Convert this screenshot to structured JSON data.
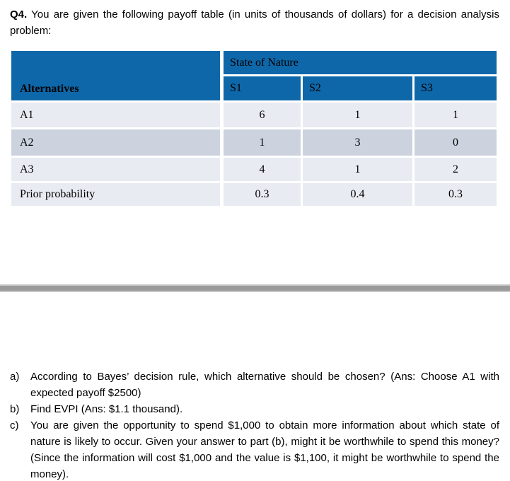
{
  "intro": {
    "label": "Q4.",
    "text": "You are given the following payoff table (in units of thousands of dollars) for a decision analysis problem:"
  },
  "table": {
    "corner_header": "Alternatives",
    "group_header": "State of Nature",
    "columns": [
      "S1",
      "S2",
      "S3"
    ],
    "rows": [
      {
        "label": "A1",
        "values": [
          "6",
          "1",
          "1"
        ]
      },
      {
        "label": "A2",
        "values": [
          "1",
          "3",
          "0"
        ]
      },
      {
        "label": "A3",
        "values": [
          "4",
          "1",
          "2"
        ]
      },
      {
        "label": "Prior probability",
        "values": [
          "0.3",
          "0.4",
          "0.3"
        ]
      }
    ]
  },
  "questions": [
    {
      "marker": "a)",
      "text": "According to Bayes’ decision rule, which alternative should be chosen? (Ans: Choose A1 with expected payoff $2500)"
    },
    {
      "marker": "b)",
      "text": "Find EVPI (Ans: $1.1 thousand)."
    },
    {
      "marker": "c)",
      "text": "You are given the opportunity to spend $1,000 to obtain more information about which state of nature is likely to occur. Given your answer to part (b), might it be worthwhile to spend this money? (Since the information will cost $1,000 and the value is $1,100, it might be worthwhile to spend the money)."
    }
  ],
  "colors": {
    "header_blue": "#0E67A9",
    "row_light": "#E9EBF2",
    "row_dark": "#CCD3DF",
    "divider_gray": "#9A9A9A"
  }
}
